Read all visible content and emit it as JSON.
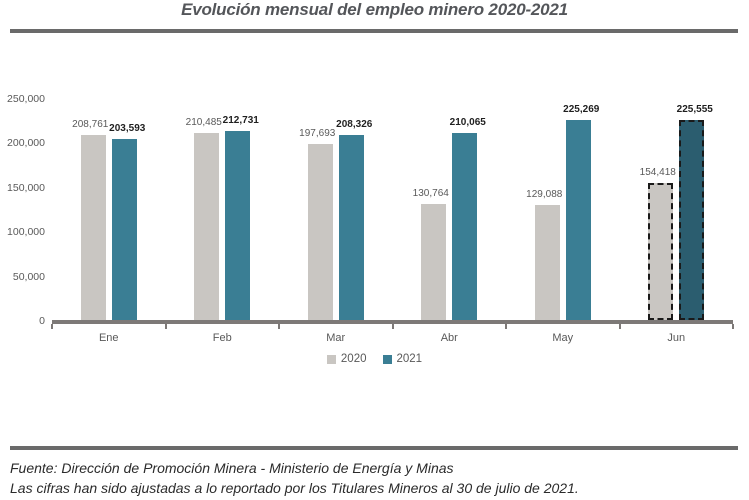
{
  "title": "Evolución mensual del empleo minero 2020-2021",
  "legend": {
    "items": [
      {
        "label": "2020",
        "color": "#c9c6c2"
      },
      {
        "label": "2021",
        "color": "#3a7e94"
      }
    ]
  },
  "footer": {
    "line1": "Fuente: Dirección de Promoción Minera - Ministerio de Energía y Minas",
    "line2": "Las cifras han sido ajustadas a lo reportado por los Titulares Mineros al 30 de julio de 2021."
  },
  "chart_data": {
    "type": "bar",
    "title": "Evolución mensual del empleo minero 2020-2021",
    "categories": [
      "Ene",
      "Feb",
      "Mar",
      "Abr",
      "May",
      "Jun"
    ],
    "series": [
      {
        "name": "2020",
        "color": "#c9c6c2",
        "values": [
          208761,
          210485,
          197693,
          130764,
          129088,
          154418
        ]
      },
      {
        "name": "2021",
        "color": "#3a7e94",
        "values": [
          203593,
          212731,
          208326,
          210065,
          225269,
          225555
        ]
      }
    ],
    "last_category_dashed": true,
    "last_category_2021_color": "#2b5d6f",
    "ylim": [
      0,
      250000
    ],
    "y_ticks": [
      0,
      50000,
      100000,
      150000,
      200000,
      250000
    ],
    "xlabel": "",
    "ylabel": "",
    "grid": false,
    "legend_position": "bottom",
    "axis_color": "#7d7977"
  }
}
